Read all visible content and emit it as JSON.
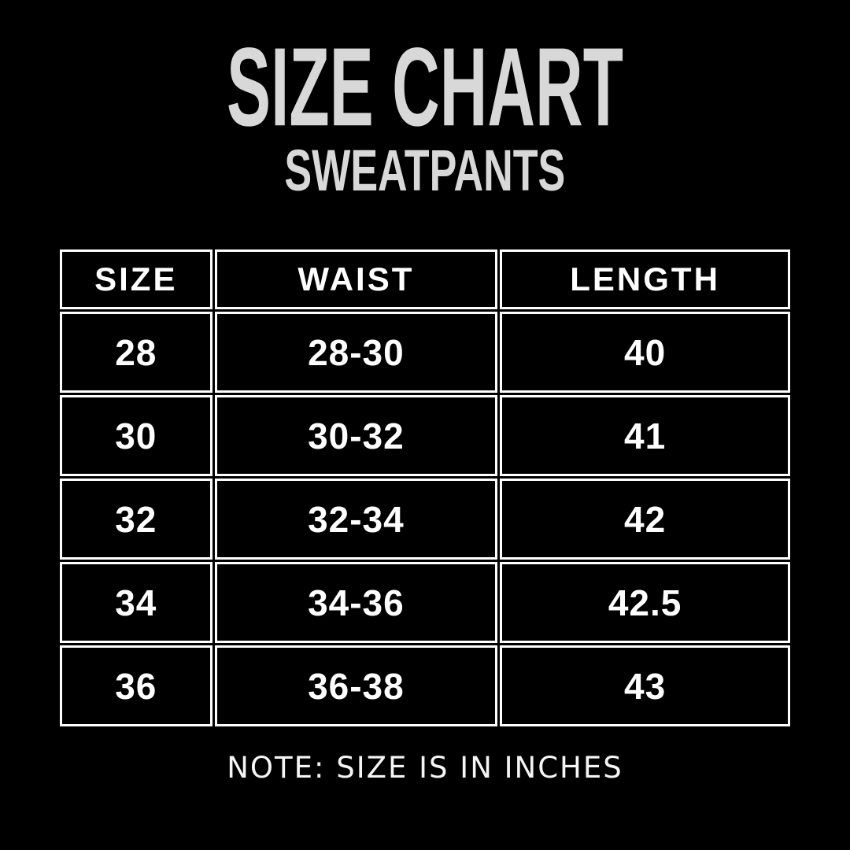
{
  "header": {
    "title": "SIZE CHART",
    "subtitle": "SWEATPANTS"
  },
  "footer": {
    "note": "NOTE: SIZE IS IN INCHES"
  },
  "colors": {
    "background": "#000000",
    "title_text": "#d8d8d8",
    "table_text": "#ffffff",
    "table_border": "#ffffff",
    "note_text": "#f5f5f5"
  },
  "chart_data": {
    "type": "table",
    "title": "SIZE CHART",
    "subtitle": "SWEATPANTS",
    "units": "inches",
    "columns": [
      "SIZE",
      "WAIST",
      "LENGTH"
    ],
    "rows": [
      [
        "28",
        "28-30",
        "40"
      ],
      [
        "30",
        "30-32",
        "41"
      ],
      [
        "32",
        "32-34",
        "42"
      ],
      [
        "34",
        "34-36",
        "42.5"
      ],
      [
        "36",
        "36-38",
        "43"
      ]
    ],
    "note": "NOTE: SIZE IS IN INCHES"
  }
}
